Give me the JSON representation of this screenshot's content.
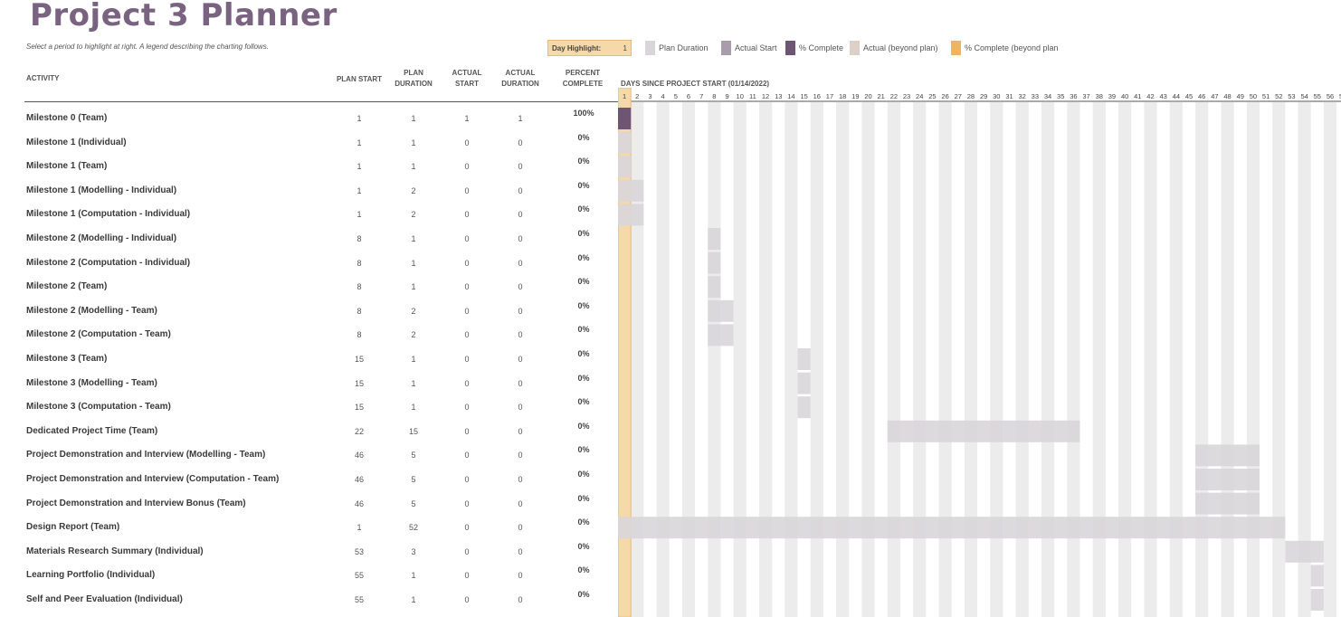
{
  "title": "Project 3 Planner",
  "subtitle": "Select a period to highlight at right.  A legend describing the charting follows.",
  "day_highlight": {
    "label": "Day Highlight:",
    "value": "1"
  },
  "legend": [
    {
      "label": "Plan Duration",
      "color": "#d9d6da",
      "icon": "plan-duration-swatch"
    },
    {
      "label": "Actual Start",
      "color": "#a99cac",
      "icon": "actual-start-swatch"
    },
    {
      "label": "% Complete",
      "color": "#6e5573",
      "icon": "percent-complete-swatch"
    },
    {
      "label": "Actual (beyond plan)",
      "color": "#ddd0c6",
      "icon": "actual-beyond-plan-swatch"
    },
    {
      "label": "% Complete (beyond plan",
      "color": "#f0b45e",
      "icon": "percent-complete-beyond-plan-swatch"
    }
  ],
  "headers": {
    "activity": "ACTIVITY",
    "plan_start": "PLAN START",
    "plan_duration_1": "PLAN",
    "plan_duration_2": "DURATION",
    "actual_start_1": "ACTUAL",
    "actual_start_2": "START",
    "actual_duration_1": "ACTUAL",
    "actual_duration_2": "DURATION",
    "percent_1": "PERCENT",
    "percent_2": "COMPLETE"
  },
  "timeline_title": "DAYS SINCE PROJECT START (01/14/2022)",
  "highlight_day": 1,
  "rows": [
    {
      "activity": "Milestone 0 (Team)",
      "plan_start": "1",
      "plan_duration": "1",
      "actual_start": "1",
      "actual_duration": "1",
      "percent": "100%"
    },
    {
      "activity": "Milestone 1 (Individual)",
      "plan_start": "1",
      "plan_duration": "1",
      "actual_start": "0",
      "actual_duration": "0",
      "percent": "0%"
    },
    {
      "activity": "Milestone 1 (Team)",
      "plan_start": "1",
      "plan_duration": "1",
      "actual_start": "0",
      "actual_duration": "0",
      "percent": "0%"
    },
    {
      "activity": "Milestone 1 (Modelling - Individual)",
      "plan_start": "1",
      "plan_duration": "2",
      "actual_start": "0",
      "actual_duration": "0",
      "percent": "0%"
    },
    {
      "activity": "Milestone 1 (Computation - Individual)",
      "plan_start": "1",
      "plan_duration": "2",
      "actual_start": "0",
      "actual_duration": "0",
      "percent": "0%"
    },
    {
      "activity": "Milestone 2 (Modelling - Individual)",
      "plan_start": "8",
      "plan_duration": "1",
      "actual_start": "0",
      "actual_duration": "0",
      "percent": "0%"
    },
    {
      "activity": "Milestone 2 (Computation - Individual)",
      "plan_start": "8",
      "plan_duration": "1",
      "actual_start": "0",
      "actual_duration": "0",
      "percent": "0%"
    },
    {
      "activity": "Milestone 2 (Team)",
      "plan_start": "8",
      "plan_duration": "1",
      "actual_start": "0",
      "actual_duration": "0",
      "percent": "0%"
    },
    {
      "activity": "Milestone 2 (Modelling - Team)",
      "plan_start": "8",
      "plan_duration": "2",
      "actual_start": "0",
      "actual_duration": "0",
      "percent": "0%"
    },
    {
      "activity": "Milestone 2 (Computation - Team)",
      "plan_start": "8",
      "plan_duration": "2",
      "actual_start": "0",
      "actual_duration": "0",
      "percent": "0%"
    },
    {
      "activity": "Milestone 3 (Team)",
      "plan_start": "15",
      "plan_duration": "1",
      "actual_start": "0",
      "actual_duration": "0",
      "percent": "0%"
    },
    {
      "activity": "Milestone 3 (Modelling - Team)",
      "plan_start": "15",
      "plan_duration": "1",
      "actual_start": "0",
      "actual_duration": "0",
      "percent": "0%"
    },
    {
      "activity": "Milestone 3 (Computation - Team)",
      "plan_start": "15",
      "plan_duration": "1",
      "actual_start": "0",
      "actual_duration": "0",
      "percent": "0%"
    },
    {
      "activity": "Dedicated Project Time (Team)",
      "plan_start": "22",
      "plan_duration": "15",
      "actual_start": "0",
      "actual_duration": "0",
      "percent": "0%"
    },
    {
      "activity": "Project Demonstration and Interview (Modelling - Team)",
      "plan_start": "46",
      "plan_duration": "5",
      "actual_start": "0",
      "actual_duration": "0",
      "percent": "0%"
    },
    {
      "activity": "Project Demonstration and Interview (Computation - Team)",
      "plan_start": "46",
      "plan_duration": "5",
      "actual_start": "0",
      "actual_duration": "0",
      "percent": "0%"
    },
    {
      "activity": "Project Demonstration and Interview Bonus (Team)",
      "plan_start": "46",
      "plan_duration": "5",
      "actual_start": "0",
      "actual_duration": "0",
      "percent": "0%"
    },
    {
      "activity": "Design Report (Team)",
      "plan_start": "1",
      "plan_duration": "52",
      "actual_start": "0",
      "actual_duration": "0",
      "percent": "0%"
    },
    {
      "activity": "Materials Research Summary (Individual)",
      "plan_start": "53",
      "plan_duration": "3",
      "actual_start": "0",
      "actual_duration": "0",
      "percent": "0%"
    },
    {
      "activity": "Learning Portfolio (Individual)",
      "plan_start": "55",
      "plan_duration": "1",
      "actual_start": "0",
      "actual_duration": "0",
      "percent": "0%"
    },
    {
      "activity": "Self and Peer Evaluation (Individual)",
      "plan_start": "55",
      "plan_duration": "1",
      "actual_start": "0",
      "actual_duration": "0",
      "percent": "0%"
    }
  ]
}
